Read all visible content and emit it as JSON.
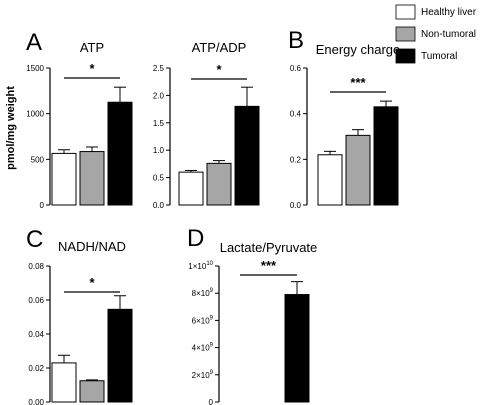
{
  "legend": [
    {
      "label": "Healthy liver",
      "color": "#ffffff"
    },
    {
      "label": "Non-tumoral",
      "color": "#a6a6a6"
    },
    {
      "label": "Tumoral",
      "color": "#000000"
    }
  ],
  "ylabel": "pmol/mg weight",
  "chart_data": [
    {
      "panel": "A",
      "title": "ATP",
      "type": "bar",
      "categories": [
        "Healthy liver",
        "Non-tumoral",
        "Tumoral"
      ],
      "values": [
        565,
        585,
        1125
      ],
      "errors": [
        40,
        50,
        165
      ],
      "ylim": [
        0,
        1500
      ],
      "yticks": [
        "0",
        "500",
        "1000",
        "1500"
      ],
      "significance": {
        "label": "*",
        "from": 0,
        "to": 2
      }
    },
    {
      "panel": "",
      "title": "ATP/ADP",
      "type": "bar",
      "categories": [
        "Healthy liver",
        "Non-tumoral",
        "Tumoral"
      ],
      "values": [
        0.6,
        0.76,
        1.8
      ],
      "errors": [
        0.03,
        0.05,
        0.35
      ],
      "ylim": [
        0,
        2.5
      ],
      "yticks": [
        "0.0",
        "0.5",
        "1.0",
        "1.5",
        "2.0",
        "2.5"
      ],
      "significance": {
        "label": "*",
        "from": 0,
        "to": 2
      }
    },
    {
      "panel": "B",
      "title": "Energy charge",
      "type": "bar",
      "categories": [
        "Healthy liver",
        "Non-tumoral",
        "Tumoral"
      ],
      "values": [
        0.22,
        0.305,
        0.43
      ],
      "errors": [
        0.015,
        0.025,
        0.025
      ],
      "ylim": [
        0,
        0.6
      ],
      "yticks": [
        "0.0",
        "0.2",
        "0.4",
        "0.6"
      ],
      "significance": {
        "label": "***",
        "from": 0,
        "to": 2
      }
    },
    {
      "panel": "C",
      "title": "NADH/NAD",
      "type": "bar",
      "categories": [
        "Healthy liver",
        "Non-tumoral",
        "Tumoral"
      ],
      "values": [
        0.023,
        0.0125,
        0.0545
      ],
      "errors": [
        0.0045,
        0.0005,
        0.008
      ],
      "ylim": [
        0,
        0.08
      ],
      "yticks": [
        "0.00",
        "0.02",
        "0.04",
        "0.06",
        "0.08"
      ],
      "significance": {
        "label": "*",
        "from": 0,
        "to": 2
      }
    },
    {
      "panel": "D",
      "title": "Lactate/Pyruvate",
      "type": "bar",
      "categories": [
        "Healthy liver",
        "Non-tumoral",
        "Tumoral"
      ],
      "values": [
        0,
        0,
        7900000000
      ],
      "errors": [
        0,
        0,
        950000000
      ],
      "ylim": [
        0,
        10000000000
      ],
      "yticks": [
        {
          "mantissa": "0",
          "exp": ""
        },
        {
          "mantissa": "2×10",
          "exp": "9"
        },
        {
          "mantissa": "4×10",
          "exp": "9"
        },
        {
          "mantissa": "6×10",
          "exp": "9"
        },
        {
          "mantissa": "8×10",
          "exp": "9"
        },
        {
          "mantissa": "1×10",
          "exp": "10"
        }
      ],
      "significance": {
        "label": "***",
        "from": 0,
        "to": 2
      }
    }
  ]
}
